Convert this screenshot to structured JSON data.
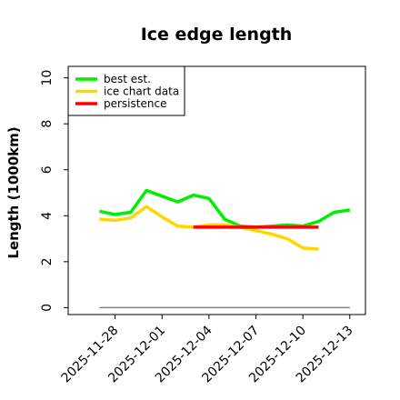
{
  "chart_data": {
    "type": "line",
    "title": "Ice edge length",
    "xlabel": "",
    "ylabel": "Length (1000km)",
    "x_ticks": [
      "2025-11-28",
      "2025-12-01",
      "2025-12-04",
      "2025-12-07",
      "2025-12-10",
      "2025-12-13"
    ],
    "y_ticks": [
      0,
      2,
      4,
      6,
      8,
      10
    ],
    "xlim": [
      "2025-11-25",
      "2025-12-14"
    ],
    "ylim": [
      -0.3,
      10.5
    ],
    "grid": false,
    "legend_position": "top-left",
    "series": [
      {
        "name": "best est.",
        "color": "#00ee00",
        "x": [
          "2025-11-27",
          "2025-11-28",
          "2025-11-29",
          "2025-11-30",
          "2025-12-01",
          "2025-12-02",
          "2025-12-03",
          "2025-12-04",
          "2025-12-05",
          "2025-12-06",
          "2025-12-07",
          "2025-12-08",
          "2025-12-09",
          "2025-12-10",
          "2025-12-11",
          "2025-12-12",
          "2025-12-13"
        ],
        "values": [
          4.2,
          4.05,
          4.15,
          5.1,
          4.85,
          4.6,
          4.9,
          4.75,
          3.85,
          3.55,
          3.5,
          3.55,
          3.6,
          3.55,
          3.75,
          4.15,
          4.25
        ]
      },
      {
        "name": "ice chart data",
        "color": "#ffd700",
        "x": [
          "2025-11-27",
          "2025-11-28",
          "2025-11-29",
          "2025-11-30",
          "2025-12-01",
          "2025-12-02",
          "2025-12-03",
          "2025-12-04",
          "2025-12-05",
          "2025-12-06",
          "2025-12-07",
          "2025-12-08",
          "2025-12-09",
          "2025-12-10",
          "2025-12-11"
        ],
        "values": [
          3.85,
          3.8,
          3.9,
          4.4,
          3.95,
          3.55,
          3.5,
          3.6,
          3.6,
          3.5,
          3.35,
          3.2,
          3.0,
          2.6,
          2.55
        ]
      },
      {
        "name": "persistence",
        "color": "#ff0000",
        "x": [
          "2025-12-03",
          "2025-12-11"
        ],
        "values": [
          3.5,
          3.5
        ]
      }
    ],
    "reference_line": {
      "color": "#808080",
      "x": [
        "2025-11-27",
        "2025-12-13"
      ],
      "values": [
        0,
        0
      ]
    }
  }
}
